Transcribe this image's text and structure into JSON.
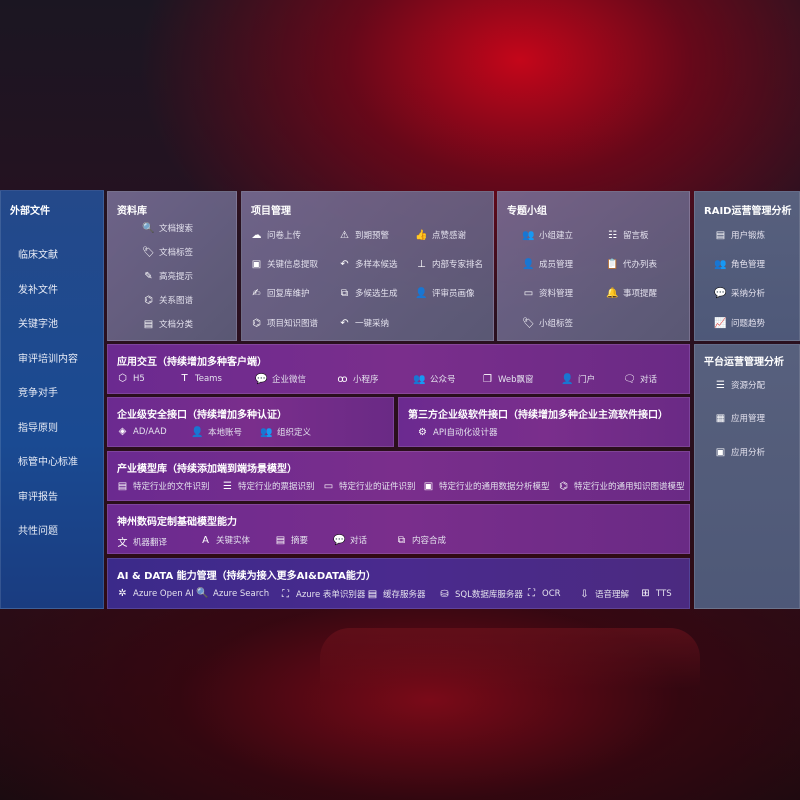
{
  "colors": {
    "left_panel": "#1e4a8a",
    "grey_panel": "#6e6a8c",
    "purple_bar": "#722c8c",
    "ai_bar": "#42298a",
    "accent_red": "#c4061a"
  },
  "external": {
    "title": "外部文件",
    "items": [
      "临床文献",
      "发补文件",
      "关键字池",
      "审评培训内容",
      "竞争对手",
      "指导原则",
      "标管中心标准",
      "审评报告",
      "共性问题"
    ]
  },
  "library": {
    "title": "资料库",
    "items": [
      {
        "label": "文档搜索",
        "icon": "doc-search-icon",
        "glyph": "🔍"
      },
      {
        "label": "文档标签",
        "icon": "tag-icon",
        "glyph": "🏷"
      },
      {
        "label": "高亮提示",
        "icon": "pen-icon",
        "glyph": "✎"
      },
      {
        "label": "关系图谱",
        "icon": "graph-icon",
        "glyph": "⌬"
      },
      {
        "label": "文档分类",
        "icon": "doc-category-icon",
        "glyph": "▤"
      }
    ]
  },
  "project": {
    "title": "项目管理",
    "items": [
      {
        "label": "问卷上传",
        "icon": "cloud-upload-icon",
        "glyph": "☁"
      },
      {
        "label": "到期预警",
        "icon": "alarm-icon",
        "glyph": "⚠"
      },
      {
        "label": "点赞感谢",
        "icon": "thumbs-up-icon",
        "glyph": "👍"
      },
      {
        "label": "关键信息提取",
        "icon": "window-icon",
        "glyph": "▣"
      },
      {
        "label": "多样本候选",
        "icon": "reply-icon",
        "glyph": "↶"
      },
      {
        "label": "内部专家排名",
        "icon": "ranking-icon",
        "glyph": "⊥"
      },
      {
        "label": "回复库维护",
        "icon": "edit-icon",
        "glyph": "✍"
      },
      {
        "label": "多候选生成",
        "icon": "puzzle-icon",
        "glyph": "⧉"
      },
      {
        "label": "评审员画像",
        "icon": "person-icon",
        "glyph": "👤"
      },
      {
        "label": "项目知识图谱",
        "icon": "graph-icon",
        "glyph": "⌬"
      },
      {
        "label": "一键采纳",
        "icon": "reply-icon",
        "glyph": "↶"
      }
    ]
  },
  "group": {
    "title": "专题小组",
    "items": [
      {
        "label": "小组建立",
        "icon": "group-icon",
        "glyph": "👥"
      },
      {
        "label": "留言板",
        "icon": "bbs-icon",
        "glyph": "☷"
      },
      {
        "label": "成员管理",
        "icon": "user-add-icon",
        "glyph": "👤"
      },
      {
        "label": "代办列表",
        "icon": "clipboard-icon",
        "glyph": "📋"
      },
      {
        "label": "资料管理",
        "icon": "folder-icon",
        "glyph": "▭"
      },
      {
        "label": "事项提醒",
        "icon": "bell-icon",
        "glyph": "🔔"
      },
      {
        "label": "小组标签",
        "icon": "tag-icon",
        "glyph": "🏷"
      }
    ]
  },
  "raid": {
    "title": "RAID运营管理分析",
    "items": [
      {
        "label": "用户锻炼",
        "icon": "id-card-icon",
        "glyph": "▤"
      },
      {
        "label": "角色管理",
        "icon": "users-icon",
        "glyph": "👥"
      },
      {
        "label": "采纳分析",
        "icon": "qa-icon",
        "glyph": "💬"
      },
      {
        "label": "问题趋势",
        "icon": "trend-icon",
        "glyph": "📈"
      }
    ]
  },
  "platform": {
    "title": "平台运营管理分析",
    "items": [
      {
        "label": "资源分配",
        "icon": "checklist-icon",
        "glyph": "☰"
      },
      {
        "label": "应用管理",
        "icon": "apps-icon",
        "glyph": "▦"
      },
      {
        "label": "应用分析",
        "icon": "analysis-icon",
        "glyph": "▣"
      }
    ]
  },
  "interaction": {
    "title": "应用交互（持续增加多种客户端）",
    "items": [
      {
        "label": "H5",
        "icon": "html5-icon",
        "glyph": "⬡"
      },
      {
        "label": "Teams",
        "icon": "teams-icon",
        "glyph": "T"
      },
      {
        "label": "企业微信",
        "icon": "wecom-icon",
        "glyph": "💬"
      },
      {
        "label": "小程序",
        "icon": "miniprogram-icon",
        "glyph": "ꝏ"
      },
      {
        "label": "公众号",
        "icon": "official-account-icon",
        "glyph": "👥"
      },
      {
        "label": "Web飘窗",
        "icon": "web-window-icon",
        "glyph": "❐"
      },
      {
        "label": "门户",
        "icon": "portal-icon",
        "glyph": "👤"
      },
      {
        "label": "对话",
        "icon": "chat-icon",
        "glyph": "🗨"
      }
    ]
  },
  "security": {
    "title": "企业级安全接口（持续增加多种认证）",
    "items": [
      {
        "label": "AD/AAD",
        "icon": "ad-icon",
        "glyph": "◈"
      },
      {
        "label": "本地账号",
        "icon": "local-account-icon",
        "glyph": "👤"
      },
      {
        "label": "组织定义",
        "icon": "org-icon",
        "glyph": "👥"
      }
    ]
  },
  "thirdparty": {
    "title": "第三方企业级软件接口（持续增加多种企业主流软件接口）",
    "items": [
      {
        "label": "API自动化设计器",
        "icon": "api-gear-icon",
        "glyph": "⚙"
      }
    ]
  },
  "industry": {
    "title": "产业模型库（持续添加端到端场景模型）",
    "items": [
      {
        "label": "特定行业的文件识别",
        "icon": "file-icon",
        "glyph": "▤"
      },
      {
        "label": "特定行业的票据识别",
        "icon": "receipt-icon",
        "glyph": "☰"
      },
      {
        "label": "特定行业的证件识别",
        "icon": "id-card-icon",
        "glyph": "▭"
      },
      {
        "label": "特定行业的通用数据分析模型",
        "icon": "chart-icon",
        "glyph": "▣"
      },
      {
        "label": "特定行业的通用知识图谱模型",
        "icon": "graph-icon",
        "glyph": "⌬"
      }
    ]
  },
  "basemodel": {
    "title": "神州数码定制基础模型能力",
    "items": [
      {
        "label": "机器翻译",
        "icon": "translate-icon",
        "glyph": "文"
      },
      {
        "label": "关键实体",
        "icon": "entity-icon",
        "glyph": "A"
      },
      {
        "label": "摘要",
        "icon": "summary-icon",
        "glyph": "▤"
      },
      {
        "label": "对话",
        "icon": "chat-icon",
        "glyph": "💬"
      },
      {
        "label": "内容合成",
        "icon": "puzzle-icon",
        "glyph": "⧉"
      }
    ]
  },
  "aidata": {
    "title": "AI & DATA 能力管理（持续为接入更多AI&DATA能力）",
    "items": [
      {
        "label": "Azure Open AI",
        "icon": "openai-icon",
        "glyph": "✲"
      },
      {
        "label": "Azure Search",
        "icon": "search-doc-icon",
        "glyph": "🔍"
      },
      {
        "label": "Azure 表单识别器",
        "icon": "form-scan-icon",
        "glyph": "⛶"
      },
      {
        "label": "缓存服务器",
        "icon": "cache-server-icon",
        "glyph": "▤"
      },
      {
        "label": "SQL数据库服务器",
        "icon": "database-icon",
        "glyph": "⛁"
      },
      {
        "label": "OCR",
        "icon": "ocr-icon",
        "glyph": "⛶"
      },
      {
        "label": "语音理解",
        "icon": "speech-icon",
        "glyph": "⇩"
      },
      {
        "label": "TTS",
        "icon": "tts-icon",
        "glyph": "⊞"
      }
    ]
  }
}
